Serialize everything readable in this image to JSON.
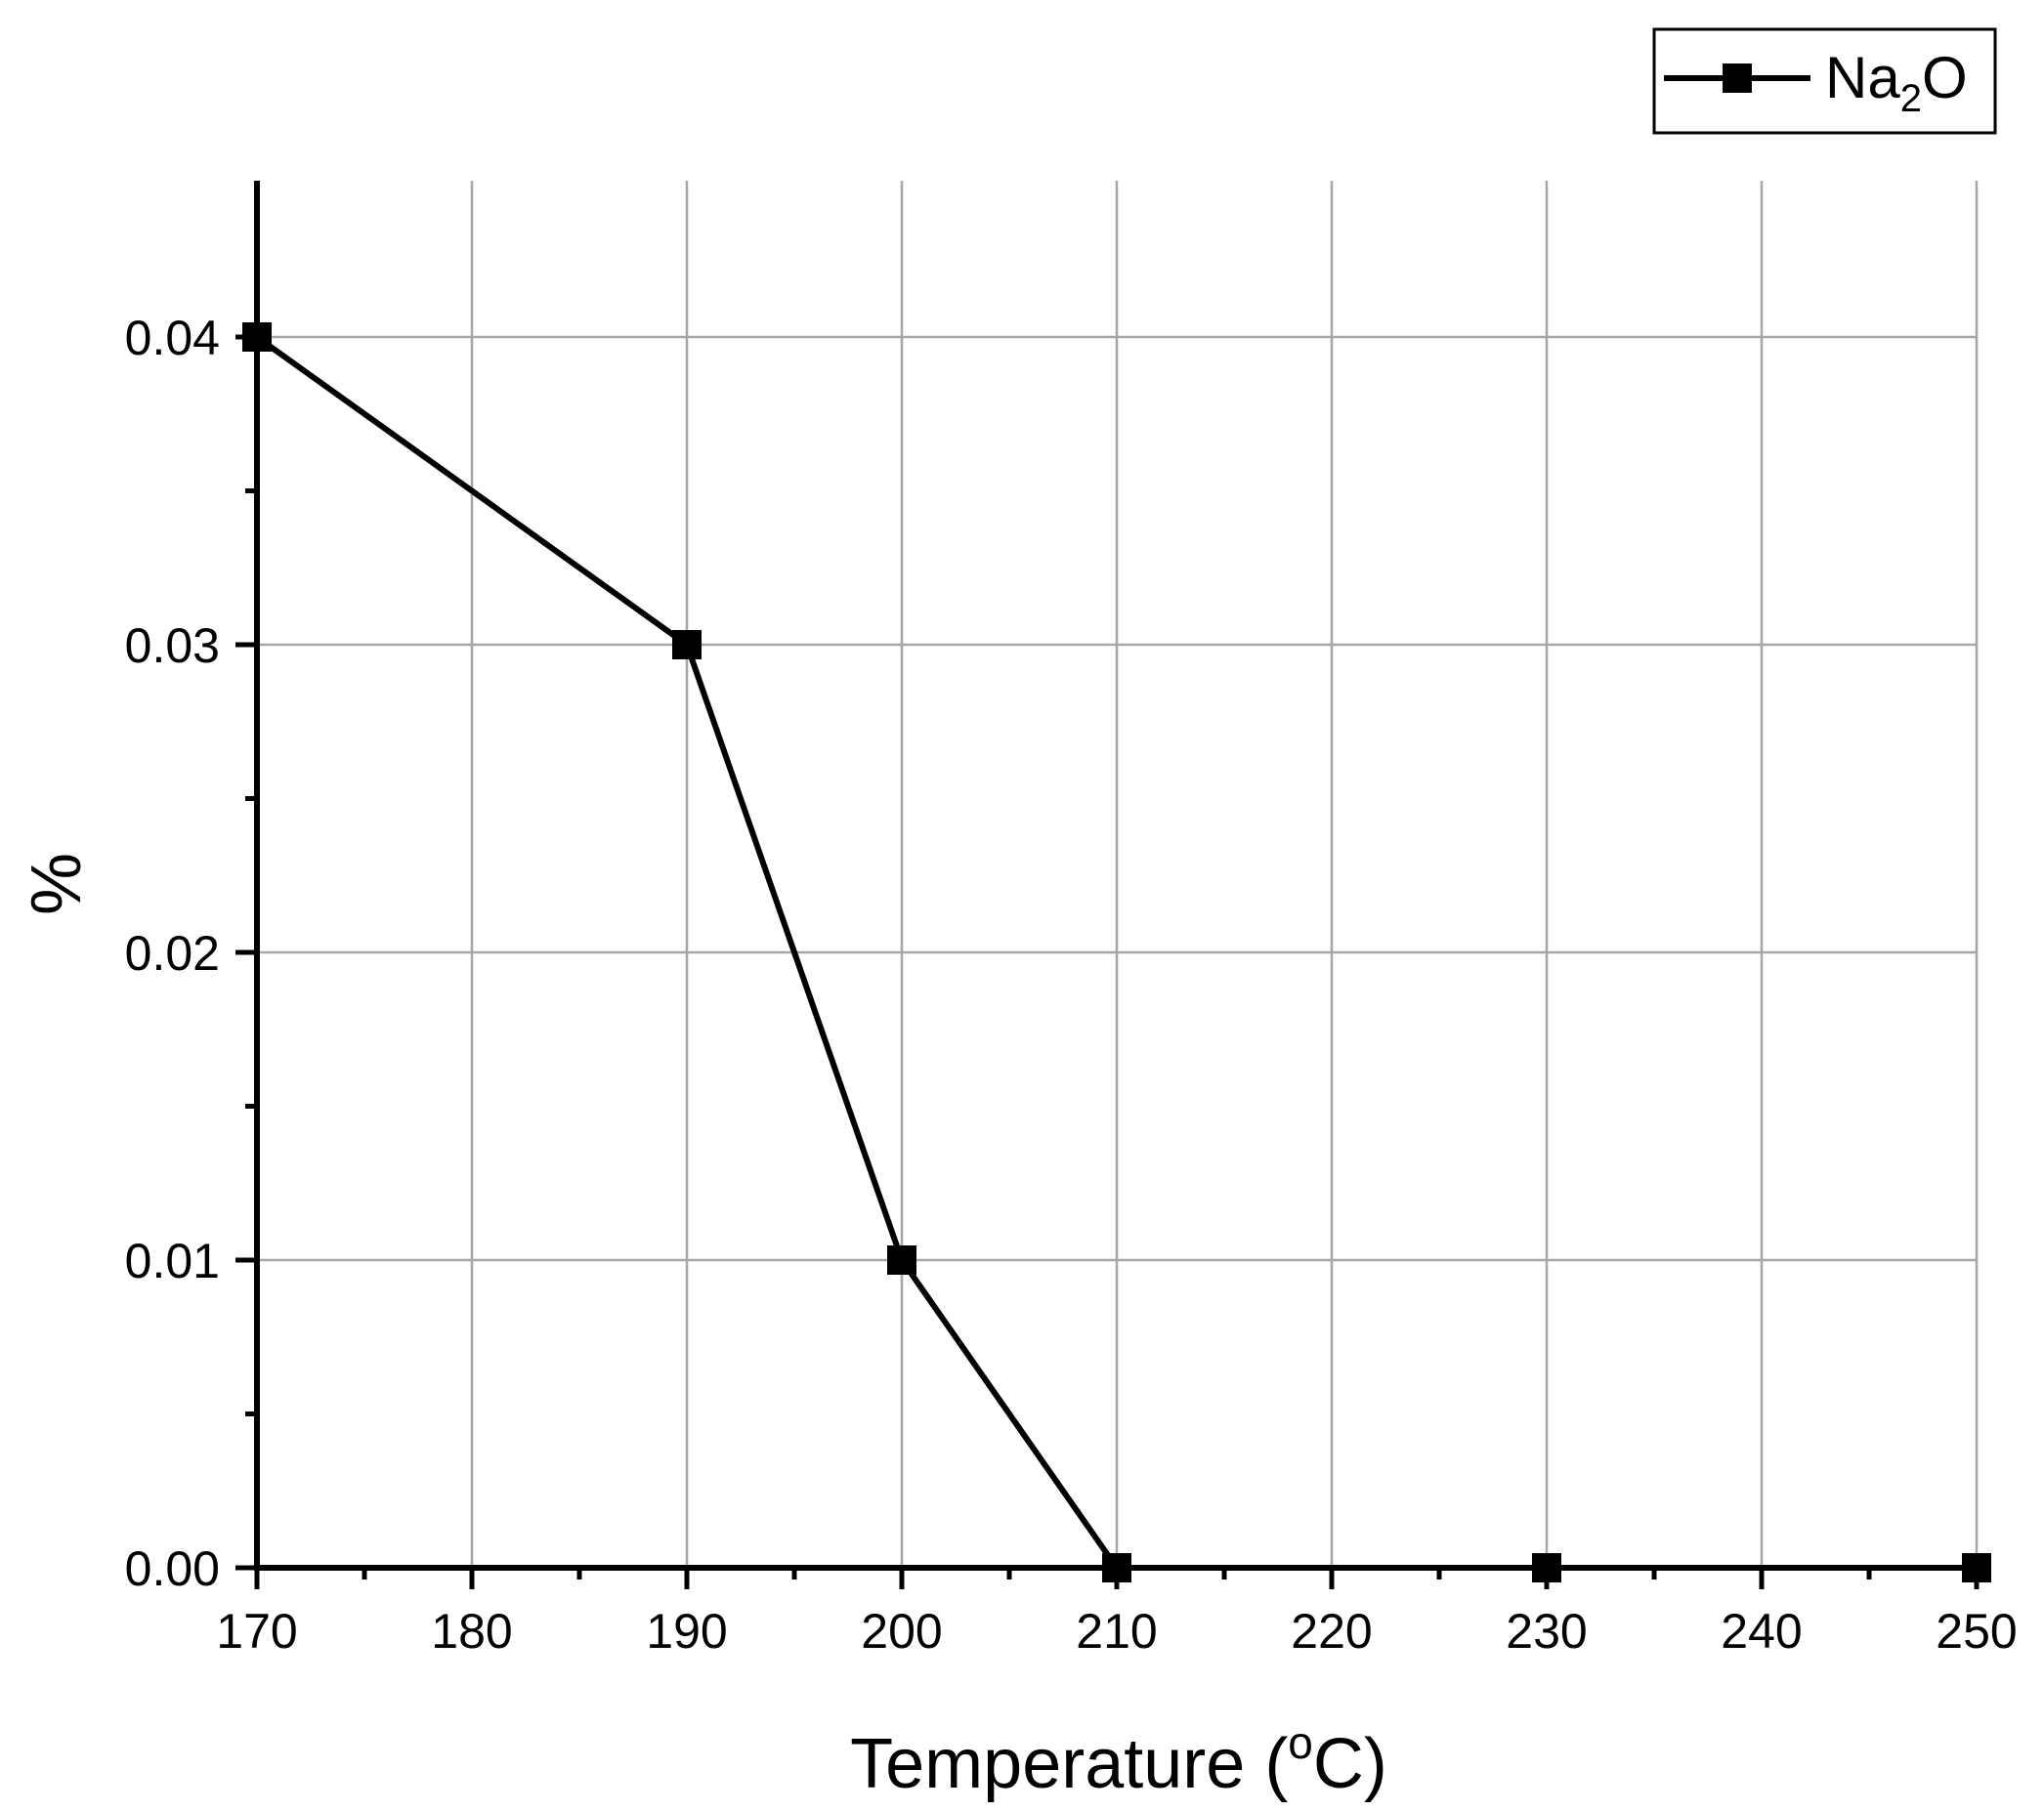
{
  "chart_data": {
    "type": "line",
    "title": "",
    "xlabel": "Temperature (°C)",
    "xlabel_parts": {
      "main": "Temperature (",
      "sup": "o",
      "tail": "C)"
    },
    "ylabel": "%",
    "xlim": [
      170,
      250
    ],
    "ylim": [
      0,
      0.045
    ],
    "grid": true,
    "x_ticks": [
      170,
      180,
      190,
      200,
      210,
      220,
      230,
      240,
      250
    ],
    "x_tick_labels": [
      "170",
      "180",
      "190",
      "200",
      "210",
      "220",
      "230",
      "240",
      "250"
    ],
    "y_ticks": [
      0,
      0.01,
      0.02,
      0.03,
      0.04
    ],
    "y_tick_labels": [
      "0.00",
      "0.01",
      "0.02",
      "0.03",
      "0.04"
    ],
    "x_minor_ticks": [
      175,
      185,
      195,
      205,
      215,
      225,
      235,
      245
    ],
    "y_minor_ticks": [
      0.005,
      0.015,
      0.025,
      0.035
    ],
    "legend": {
      "position": "top-right",
      "label": "Na2O",
      "label_parts": {
        "main": "Na",
        "sub": "2",
        "tail": "O"
      }
    },
    "series": [
      {
        "name": "Na2O",
        "color": "#000000",
        "marker": "square",
        "x": [
          170,
          190,
          200,
          210,
          230,
          250
        ],
        "y": [
          0.04,
          0.03,
          0.01,
          0.0,
          0.0,
          0.0
        ]
      }
    ]
  }
}
